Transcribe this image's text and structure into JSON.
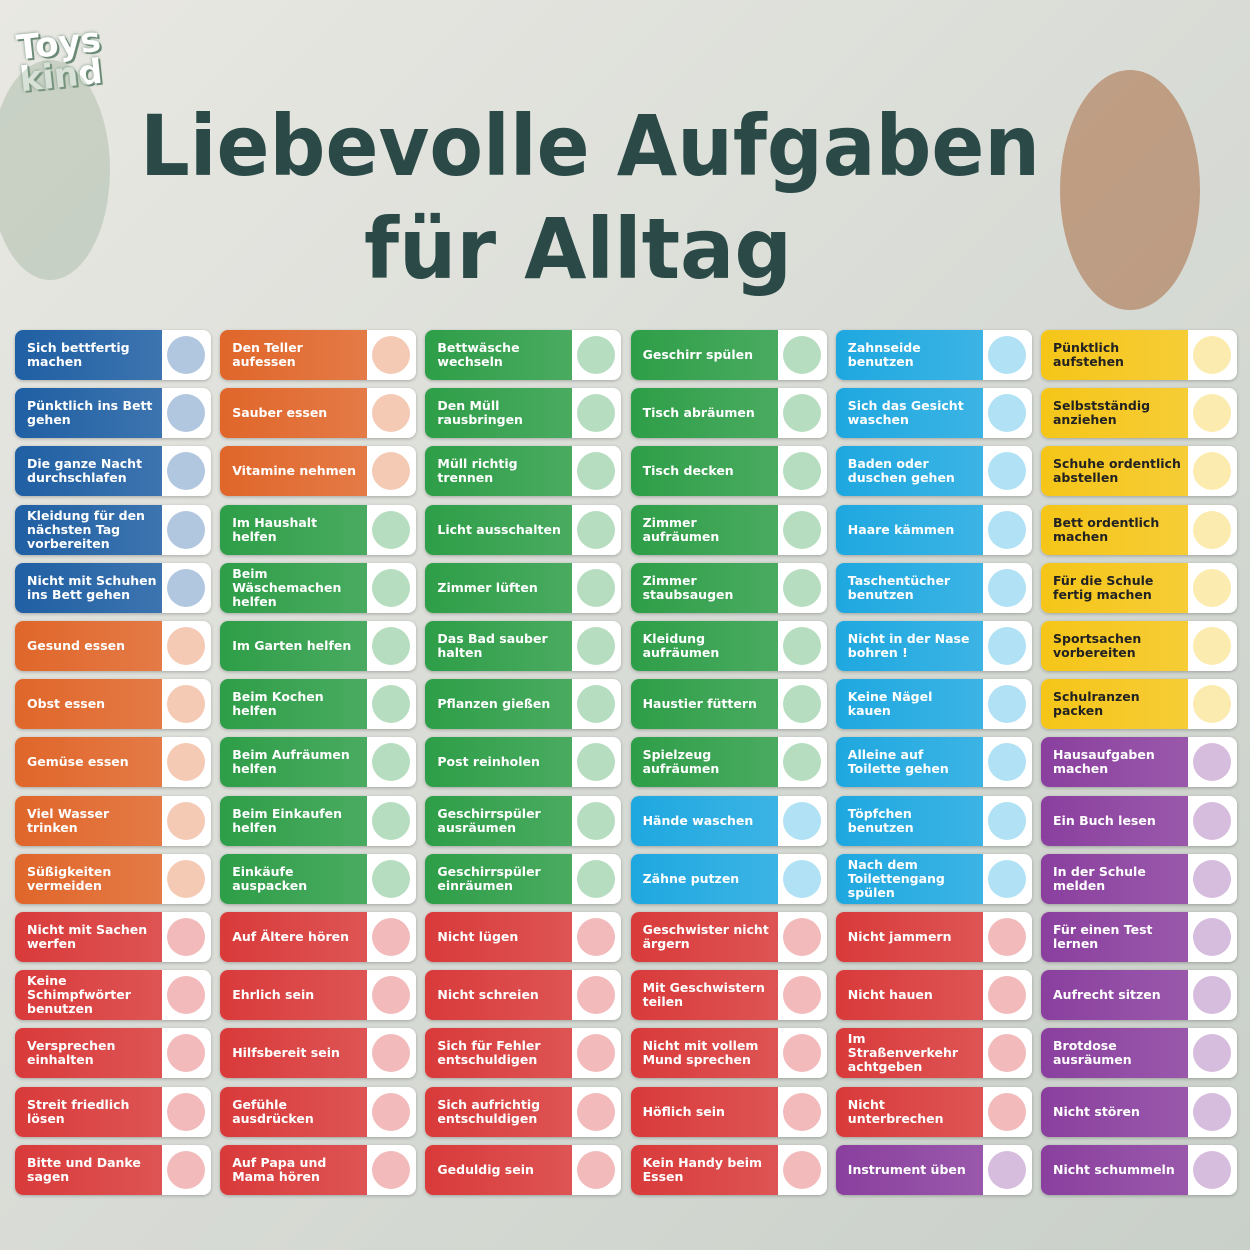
{
  "logo": [
    "Toys",
    "kind"
  ],
  "title": [
    "Liebevolle Aufgaben",
    "für Alltag"
  ],
  "columns": [
    [
      {
        "color": "#1f5fa3",
        "items": [
          "Sich bettfertig machen",
          "Pünktlich ins Bett gehen",
          "Die ganze Nacht durchschlafen",
          "Kleidung für den nächsten Tag vorbereiten",
          "Nicht mit Schuhen ins Bett gehen"
        ]
      },
      {
        "color": "#e0662a",
        "items": [
          "Gesund essen",
          "Obst essen",
          "Gemüse essen",
          "Viel Wasser trinken",
          "Süßigkeiten vermeiden"
        ]
      },
      {
        "color": "#d93a3a",
        "items": [
          "Nicht mit Sachen werfen",
          "Keine Schimpfwörter benutzen",
          "Versprechen einhalten",
          "Streit friedlich lösen",
          "Bitte und Danke sagen"
        ]
      }
    ],
    [
      {
        "color": "#e0662a",
        "items": [
          "Den Teller aufessen",
          "Sauber essen",
          "Vitamine nehmen"
        ]
      },
      {
        "color": "#2e9e48",
        "items": [
          "Im Haushalt helfen",
          "Beim Wäschemachen helfen",
          "Im Garten helfen",
          "Beim Kochen helfen",
          "Beim Aufräumen helfen",
          "Beim Einkaufen helfen",
          "Einkäufe auspacken"
        ]
      },
      {
        "color": "#d93a3a",
        "items": [
          "Auf Ältere hören",
          "Ehrlich sein",
          "Hilfsbereit sein",
          "Gefühle ausdrücken",
          "Auf Papa und Mama hören"
        ]
      }
    ],
    [
      {
        "color": "#2e9e48",
        "items": [
          "Bettwäsche wechseln",
          "Den Müll rausbringen",
          "Müll richtig trennen",
          "Licht ausschalten",
          "Zimmer lüften",
          "Das Bad sauber halten",
          "Pflanzen gießen",
          "Post reinholen",
          "Geschirrspüler ausräumen",
          "Geschirrspüler einräumen"
        ]
      },
      {
        "color": "#d93a3a",
        "items": [
          "Nicht lügen",
          "Nicht schreien",
          "Sich für Fehler entschuldigen",
          "Sich aufrichtig entschuldigen",
          "Geduldig sein"
        ]
      }
    ],
    [
      {
        "color": "#2e9e48",
        "items": [
          "Geschirr spülen",
          "Tisch abräumen",
          "Tisch decken",
          "Zimmer aufräumen",
          "Zimmer staubsaugen",
          "Kleidung aufräumen",
          "Haustier füttern",
          "Spielzeug aufräumen"
        ]
      },
      {
        "color": "#1ea8e0",
        "items": [
          "Hände waschen",
          "Zähne putzen"
        ]
      },
      {
        "color": "#d93a3a",
        "items": [
          "Geschwister nicht ärgern",
          "Mit Geschwistern teilen",
          "Nicht mit vollem Mund sprechen",
          "Höflich sein",
          "Kein Handy beim Essen"
        ]
      }
    ],
    [
      {
        "color": "#1ea8e0",
        "items": [
          "Zahnseide benutzen",
          "Sich das Gesicht waschen",
          "Baden oder duschen gehen",
          "Haare kämmen",
          "Taschentücher benutzen",
          "Nicht in der Nase bohren !",
          "Keine Nägel kauen",
          "Alleine auf Toilette gehen",
          "Töpfchen benutzen",
          "Nach dem Toilettengang spülen"
        ]
      },
      {
        "color": "#d93a3a",
        "items": [
          "Nicht jammern",
          "Nicht hauen",
          "Im Straßenverkehr achtgeben",
          "Nicht unterbrechen"
        ]
      },
      {
        "color": "#8a3f9e",
        "items": [
          "Instrument üben"
        ]
      }
    ],
    [
      {
        "color": "#f5c518",
        "items": [
          "Pünktlich aufstehen",
          "Selbstständig anziehen",
          "Schuhe ordentlich abstellen",
          "Bett ordentlich machen",
          "Für die Schule fertig machen",
          "Sportsachen vorbereiten",
          "Schulranzen packen"
        ]
      },
      {
        "color": "#8a3f9e",
        "items": [
          "Hausaufgaben machen",
          "Ein Buch lesen",
          "In der Schule melden",
          "Für einen Test lernen",
          "Aufrecht sitzen",
          "Brotdose ausräumen",
          "Nicht stören",
          "Nicht schummeln"
        ]
      }
    ]
  ]
}
